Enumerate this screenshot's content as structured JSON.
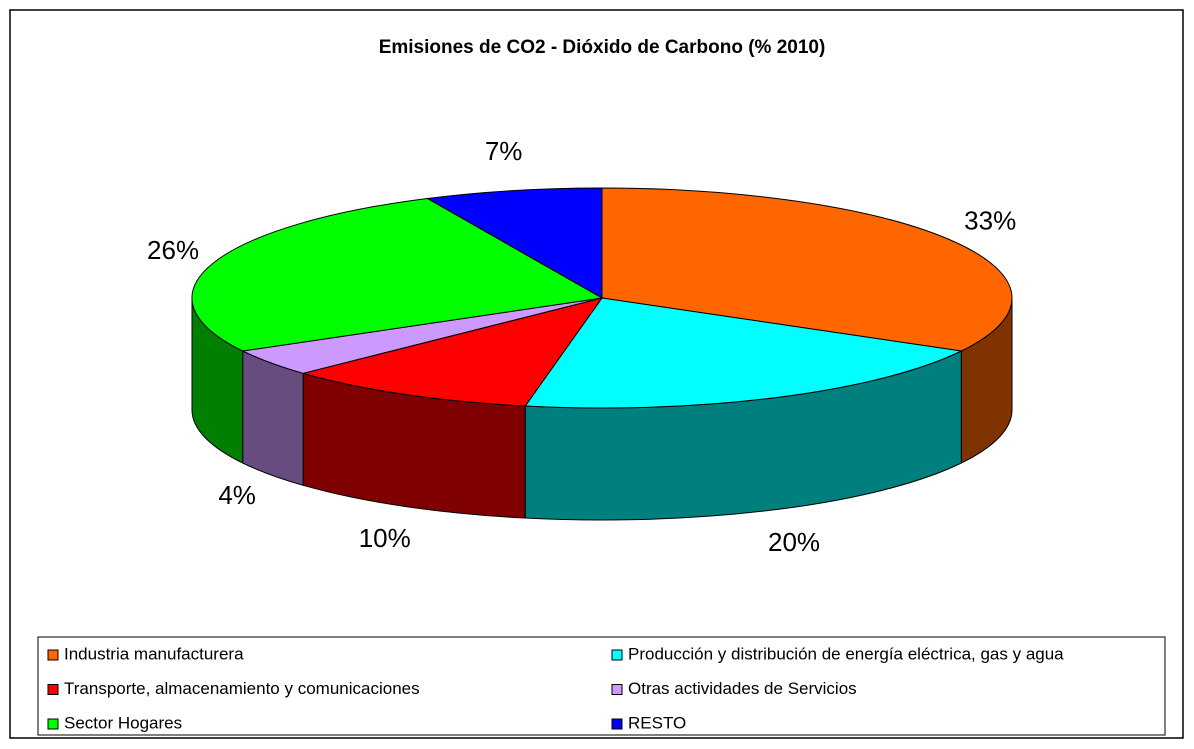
{
  "chart_data": {
    "type": "pie3d",
    "title": "Emisiones de CO2 - Dióxido de Carbono (% 2010)",
    "categories": [
      "Industria manufacturera",
      "Producción y distribución de energía eléctrica, gas y agua",
      "Transporte, almacenamiento y comunicaciones",
      "Otras actividades de Servicios",
      "Sector Hogares",
      "RESTO"
    ],
    "values": [
      33,
      20,
      10,
      4,
      26,
      7
    ],
    "value_labels": [
      "33%",
      "20%",
      "10%",
      "4%",
      "26%",
      "7%"
    ],
    "colors": [
      "#ff6600",
      "#00ffff",
      "#ff0000",
      "#cc99ff",
      "#00ff00",
      "#0000ff"
    ],
    "legend": "bottom"
  }
}
